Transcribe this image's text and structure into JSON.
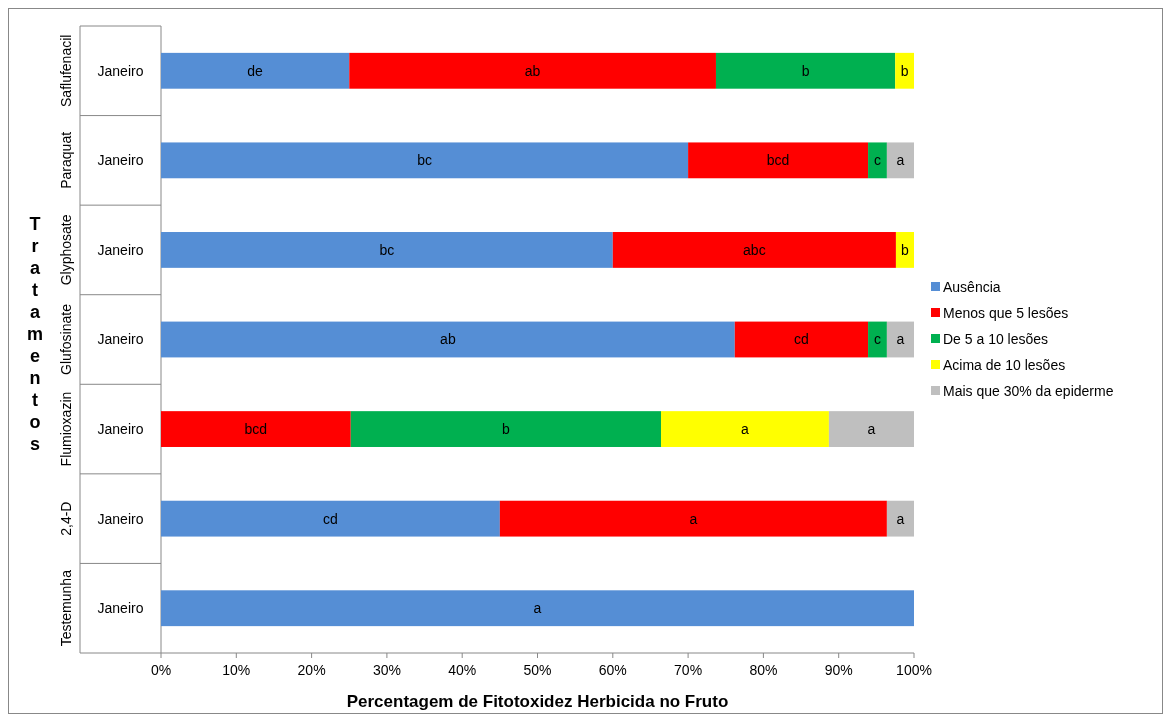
{
  "chart_data": {
    "type": "bar",
    "orientation": "horizontal",
    "stacked": true,
    "xlabel": "Percentagem de Fitotoxidez Herbicida no Fruto",
    "ylabel": "Tratamentos",
    "categories": [
      "Saflufenacil",
      "Paraquat",
      "Glyphosate",
      "Glufosinate",
      "Flumioxazin",
      "2,4-D",
      "Testemunha"
    ],
    "series": [
      {
        "name": "Ausência",
        "color": "#558ed5",
        "values": [
          25,
          70,
          60,
          76.2,
          null,
          45,
          100
        ],
        "value_labels": [
          "de",
          "bc",
          "bc",
          "ab",
          null,
          "cd",
          "a"
        ]
      },
      {
        "name": "Menos que 5 lesões",
        "color": "#ff0000",
        "values": [
          48.7,
          23.9,
          37.6,
          17.7,
          25.2,
          51.4,
          null
        ],
        "value_labels": [
          "ab",
          "bcd",
          "abc",
          "cd",
          "bcd",
          "a",
          null
        ]
      },
      {
        "name": "De 5 a 10 lesões",
        "color": "#00b050",
        "values": [
          23.8,
          2.5,
          null,
          2.5,
          41.2,
          null,
          null
        ],
        "value_labels": [
          "b",
          "c",
          null,
          "c",
          "b",
          null,
          null
        ]
      },
      {
        "name": "Acima de 10 lesões",
        "color": "#ffff00",
        "values": [
          2.5,
          null,
          2.4,
          null,
          22.3,
          null,
          null
        ],
        "value_labels": [
          "b",
          null,
          "b",
          null,
          "a",
          null,
          null
        ]
      },
      {
        "name": "Mais que 30% da epiderme",
        "color": "#bfbfbf",
        "values": [
          null,
          3.6,
          null,
          3.6,
          11.3,
          3.6,
          null
        ],
        "value_labels": [
          null,
          "a",
          null,
          "a",
          "a",
          "a",
          null
        ]
      }
    ],
    "annotations": [
      "Janeiro",
      "Janeiro",
      "Janeiro",
      "Janeiro",
      "Janeiro",
      "Janeiro",
      "Janeiro"
    ],
    "xlim": [
      0,
      100
    ],
    "xticks": [
      {
        "value": 0,
        "label": "0%"
      },
      {
        "value": 10,
        "label": "10%"
      },
      {
        "value": 20,
        "label": "20%"
      },
      {
        "value": 30,
        "label": "30%"
      },
      {
        "value": 40,
        "label": "40%"
      },
      {
        "value": 50,
        "label": "50%"
      },
      {
        "value": 60,
        "label": "60%"
      },
      {
        "value": 70,
        "label": "70%"
      },
      {
        "value": 80,
        "label": "80%"
      },
      {
        "value": 90,
        "label": "90%"
      },
      {
        "value": 100,
        "label": "100%"
      }
    ],
    "legend": "right",
    "grid": false
  }
}
